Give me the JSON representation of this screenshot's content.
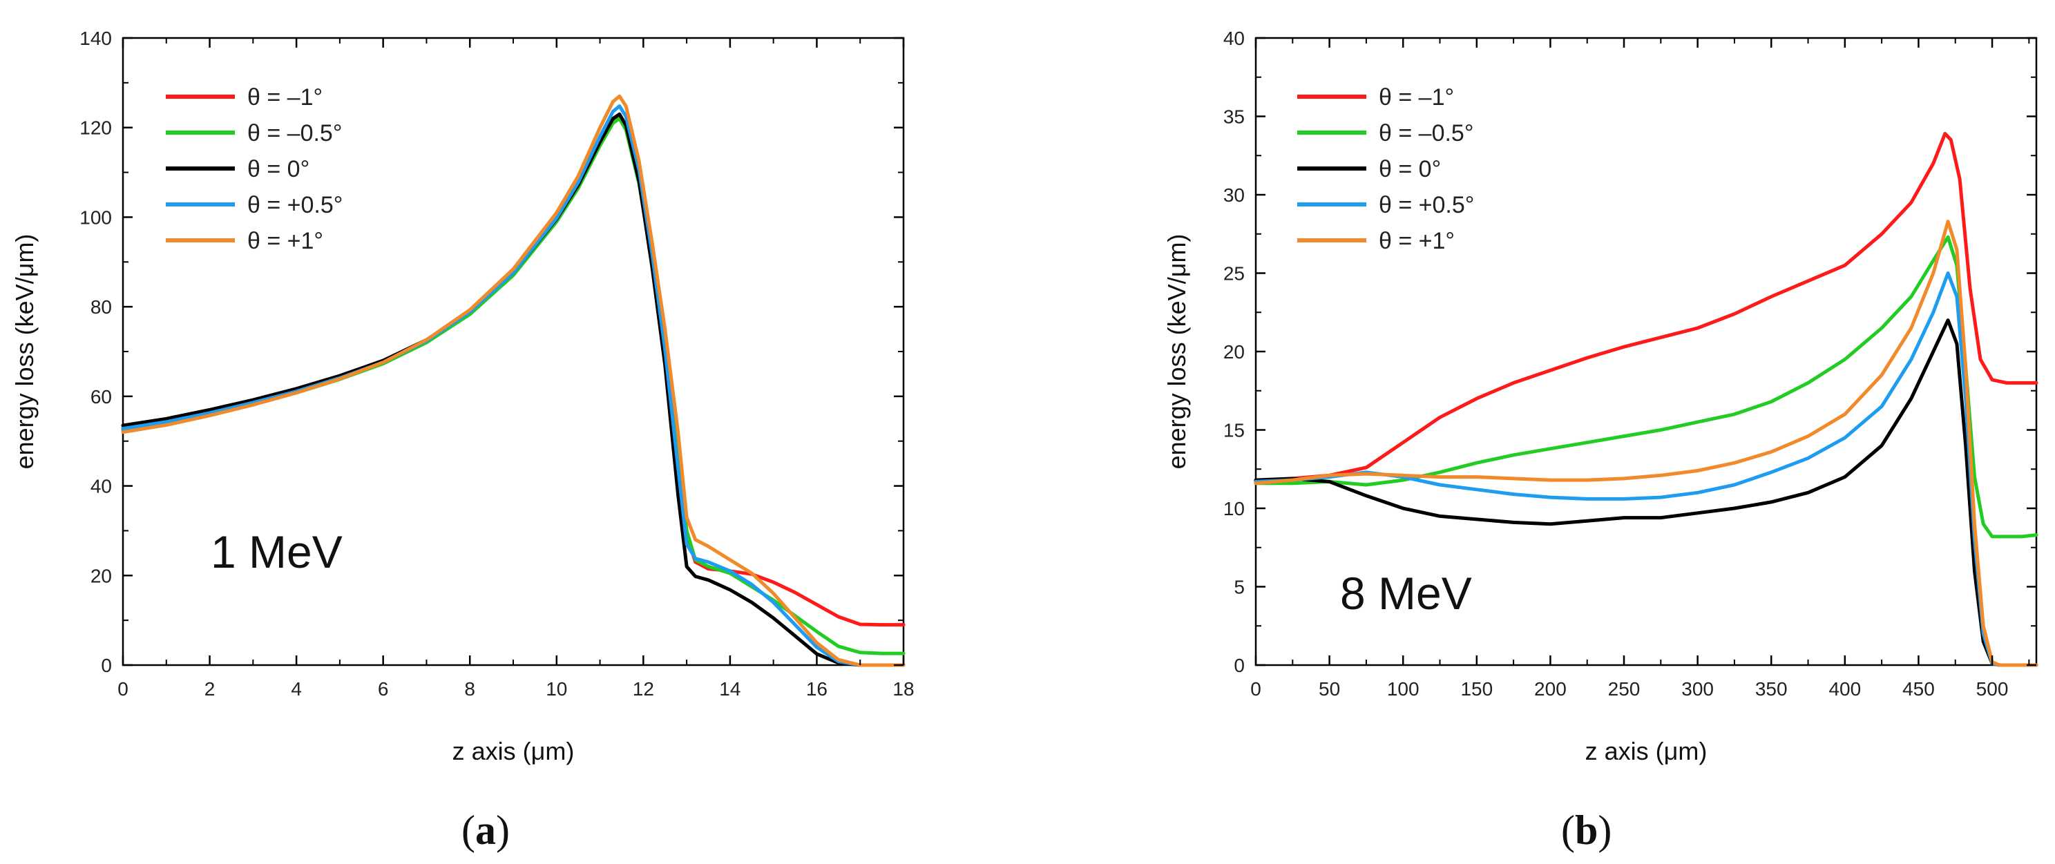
{
  "chart_data": [
    {
      "type": "line",
      "panel": "(a)",
      "panel_letter": "a",
      "annotation": "1 MeV",
      "xlabel": "z axis (μm)",
      "ylabel": "energy loss (keV/μm)",
      "xlim": [
        0,
        18
      ],
      "ylim": [
        0,
        140
      ],
      "xticks": [
        0,
        2,
        4,
        6,
        8,
        10,
        12,
        14,
        16,
        18
      ],
      "yticks": [
        0,
        20,
        40,
        60,
        80,
        100,
        120,
        140
      ],
      "legend_position": "top-left",
      "series": [
        {
          "name": "θ = –1°",
          "color": "#ff1a1a",
          "x": [
            0,
            1,
            2,
            3,
            4,
            5,
            6,
            7,
            8,
            9,
            10,
            10.5,
            11,
            11.3,
            11.45,
            11.6,
            11.9,
            12.2,
            12.5,
            12.8,
            13.0,
            13.2,
            13.5,
            14.0,
            14.5,
            15.0,
            15.5,
            16.0,
            16.5,
            17.0,
            17.5,
            18.0
          ],
          "y": [
            53,
            54.5,
            56.5,
            58.8,
            61.3,
            64.3,
            67.8,
            72.5,
            78.8,
            87.5,
            99.5,
            107,
            116.5,
            121.5,
            122.5,
            120,
            108,
            90,
            70,
            45,
            29,
            23,
            21.5,
            21,
            20.3,
            18.5,
            16.2,
            13.5,
            10.8,
            9.1,
            9,
            9
          ]
        },
        {
          "name": "θ = –0.5°",
          "color": "#22cc22",
          "x": [
            0,
            1,
            2,
            3,
            4,
            5,
            6,
            7,
            8,
            9,
            10,
            10.5,
            11,
            11.3,
            11.45,
            11.6,
            11.9,
            12.2,
            12.5,
            12.8,
            13.0,
            13.2,
            13.5,
            14.0,
            14.5,
            15.0,
            15.5,
            16.0,
            16.5,
            17.0,
            17.5,
            18.0
          ],
          "y": [
            52.5,
            54,
            56,
            58.3,
            60.8,
            63.8,
            67.3,
            72,
            78.3,
            87,
            99,
            106.5,
            116,
            121,
            122,
            119.5,
            107.5,
            90.5,
            72,
            48,
            30,
            23.5,
            22,
            20.5,
            17.5,
            14.5,
            11,
            7.5,
            4.2,
            2.8,
            2.6,
            2.6
          ]
        },
        {
          "name": "θ = 0°",
          "color": "#000000",
          "x": [
            0,
            1,
            2,
            3,
            4,
            5,
            6,
            7,
            8,
            9,
            10,
            10.5,
            11,
            11.3,
            11.45,
            11.6,
            11.9,
            12.2,
            12.5,
            12.8,
            13.0,
            13.2,
            13.5,
            14.0,
            14.5,
            15.0,
            15.5,
            16.0,
            16.5,
            17.0,
            17.5,
            18.0
          ],
          "y": [
            53.5,
            55,
            57,
            59.2,
            61.7,
            64.6,
            68,
            72.6,
            78.9,
            87.6,
            99.6,
            107.2,
            116.8,
            122,
            123,
            120.5,
            108,
            89,
            67,
            38,
            22,
            19.8,
            19,
            16.8,
            14,
            10.5,
            6.5,
            2.5,
            0.5,
            0,
            0,
            0
          ]
        },
        {
          "name": "θ = +0.5°",
          "color": "#1e9cf0",
          "x": [
            0,
            1,
            2,
            3,
            4,
            5,
            6,
            7,
            8,
            9,
            10,
            10.5,
            11,
            11.3,
            11.45,
            11.6,
            11.9,
            12.2,
            12.5,
            12.8,
            13.0,
            13.2,
            13.5,
            14.0,
            14.5,
            15.0,
            15.5,
            16.0,
            16.5,
            17.0,
            17.5,
            18.0
          ],
          "y": [
            52.8,
            54.3,
            56.3,
            58.6,
            61.1,
            64.1,
            67.6,
            72.4,
            78.8,
            87.6,
            99.8,
            107.8,
            118,
            123.6,
            124.8,
            122.5,
            110.5,
            92,
            70.5,
            44,
            27,
            23.8,
            23,
            21,
            18,
            14,
            9,
            4,
            0.8,
            0,
            0,
            0
          ]
        },
        {
          "name": "θ = +1°",
          "color": "#f08a2a",
          "x": [
            0,
            1,
            2,
            3,
            4,
            5,
            6,
            7,
            8,
            9,
            10,
            10.5,
            11,
            11.3,
            11.45,
            11.6,
            11.9,
            12.2,
            12.5,
            12.8,
            13.0,
            13.2,
            13.5,
            14.0,
            14.5,
            15.0,
            15.5,
            16.0,
            16.5,
            17.0,
            17.5,
            18.0
          ],
          "y": [
            52,
            53.6,
            55.7,
            58.1,
            60.8,
            63.9,
            67.6,
            72.6,
            79.3,
            88.4,
            101,
            109.2,
            120,
            125.8,
            127,
            124.8,
            112.5,
            94.5,
            75,
            52,
            33,
            28,
            26.5,
            23.5,
            20.5,
            16,
            10.5,
            5,
            1.2,
            0,
            0,
            0
          ]
        }
      ]
    },
    {
      "type": "line",
      "panel": "(b)",
      "panel_letter": "b",
      "annotation": "8 MeV",
      "xlabel": "z axis (μm)",
      "ylabel": "energy loss (keV/μm)",
      "xlim": [
        0,
        530
      ],
      "ylim": [
        0,
        40
      ],
      "xticks": [
        0,
        50,
        100,
        150,
        200,
        250,
        300,
        350,
        400,
        450,
        500
      ],
      "yticks": [
        0,
        5,
        10,
        15,
        20,
        25,
        30,
        35,
        40
      ],
      "legend_position": "top-left",
      "series": [
        {
          "name": "θ = –1°",
          "color": "#ff1a1a",
          "x": [
            0,
            25,
            50,
            75,
            100,
            125,
            150,
            175,
            200,
            225,
            250,
            275,
            300,
            325,
            350,
            375,
            400,
            425,
            445,
            460,
            468,
            472,
            478,
            485,
            492,
            500,
            510,
            520,
            530
          ],
          "y": [
            11.7,
            11.9,
            12.1,
            12.6,
            14.2,
            15.8,
            17.0,
            18.0,
            18.8,
            19.6,
            20.3,
            20.9,
            21.5,
            22.4,
            23.5,
            24.5,
            25.5,
            27.5,
            29.5,
            32.0,
            33.9,
            33.5,
            31.0,
            24.0,
            19.5,
            18.2,
            18.0,
            18.0,
            18.0
          ]
        },
        {
          "name": "θ = –0.5°",
          "color": "#22cc22",
          "x": [
            0,
            25,
            50,
            75,
            100,
            125,
            150,
            175,
            200,
            225,
            250,
            275,
            300,
            325,
            350,
            375,
            400,
            425,
            445,
            460,
            470,
            476,
            482,
            488,
            494,
            500,
            510,
            520,
            530
          ],
          "y": [
            11.6,
            11.6,
            11.7,
            11.5,
            11.8,
            12.3,
            12.9,
            13.4,
            13.8,
            14.2,
            14.6,
            15.0,
            15.5,
            16.0,
            16.8,
            18.0,
            19.5,
            21.5,
            23.5,
            25.8,
            27.3,
            25.5,
            19.0,
            12.0,
            9.0,
            8.2,
            8.2,
            8.2,
            8.3
          ]
        },
        {
          "name": "θ = 0°",
          "color": "#000000",
          "x": [
            0,
            25,
            50,
            75,
            100,
            125,
            150,
            175,
            200,
            225,
            250,
            275,
            300,
            325,
            350,
            375,
            400,
            425,
            445,
            460,
            470,
            476,
            482,
            488,
            494,
            500,
            505,
            510,
            530
          ],
          "y": [
            11.8,
            11.9,
            11.7,
            10.8,
            10.0,
            9.5,
            9.3,
            9.1,
            9.0,
            9.2,
            9.4,
            9.4,
            9.7,
            10.0,
            10.4,
            11.0,
            12.0,
            14.0,
            17.0,
            20.0,
            22.0,
            20.5,
            14.0,
            6.0,
            1.5,
            0.1,
            0,
            0,
            0
          ]
        },
        {
          "name": "θ = +0.5°",
          "color": "#1e9cf0",
          "x": [
            0,
            25,
            50,
            75,
            100,
            125,
            150,
            175,
            200,
            225,
            250,
            275,
            300,
            325,
            350,
            375,
            400,
            425,
            445,
            460,
            470,
            476,
            482,
            488,
            494,
            500,
            505,
            510,
            530
          ],
          "y": [
            11.7,
            11.8,
            12.0,
            12.3,
            12.0,
            11.5,
            11.2,
            10.9,
            10.7,
            10.6,
            10.6,
            10.7,
            11.0,
            11.5,
            12.3,
            13.2,
            14.5,
            16.5,
            19.5,
            22.5,
            25.0,
            23.5,
            17.0,
            8.0,
            2.0,
            0.1,
            0,
            0,
            0
          ]
        },
        {
          "name": "θ = +1°",
          "color": "#f08a2a",
          "x": [
            0,
            25,
            50,
            75,
            100,
            125,
            150,
            175,
            200,
            225,
            250,
            275,
            300,
            325,
            350,
            375,
            400,
            425,
            445,
            460,
            470,
            476,
            482,
            488,
            494,
            500,
            505,
            510,
            530
          ],
          "y": [
            11.6,
            11.8,
            12.1,
            12.2,
            12.1,
            12.0,
            12.0,
            11.9,
            11.8,
            11.8,
            11.9,
            12.1,
            12.4,
            12.9,
            13.6,
            14.6,
            16.0,
            18.5,
            21.5,
            25.0,
            28.3,
            26.5,
            19.0,
            9.0,
            2.5,
            0.2,
            0,
            0,
            0
          ]
        }
      ]
    }
  ]
}
